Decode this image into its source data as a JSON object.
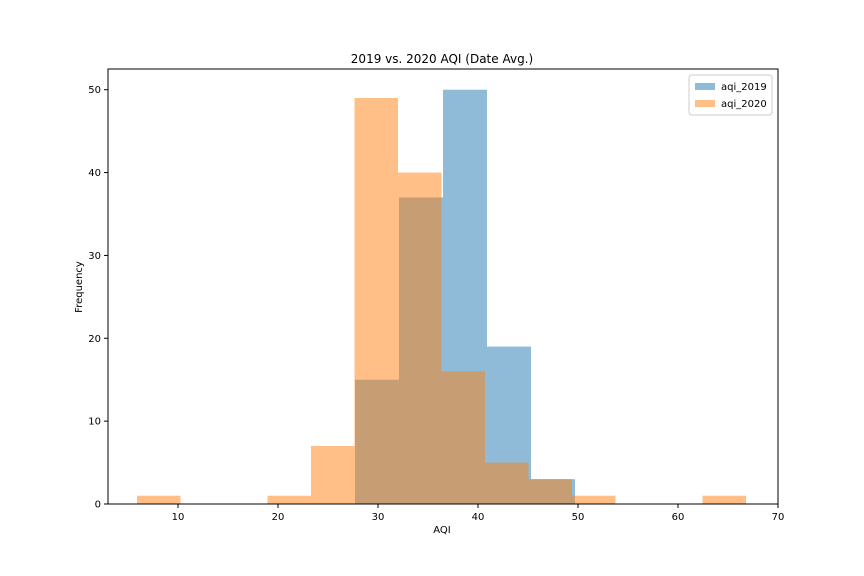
{
  "chart_data": {
    "type": "histogram",
    "title": "2019 vs. 2020 AQI (Date Avg.)",
    "xlabel": "AQI",
    "ylabel": "Frequency",
    "xlim": [
      3,
      70
    ],
    "ylim": [
      0,
      52.5
    ],
    "xticks": [
      10,
      20,
      30,
      40,
      50,
      60,
      70
    ],
    "yticks": [
      0,
      10,
      20,
      30,
      40,
      50
    ],
    "legend_position": "top-right",
    "series": [
      {
        "name": "aqi_2019",
        "color": "#1f77b4",
        "alpha": 0.5,
        "bins": [
          {
            "x0": 27.7,
            "x1": 32.1,
            "count": 15
          },
          {
            "x0": 32.1,
            "x1": 36.5,
            "count": 37
          },
          {
            "x0": 36.5,
            "x1": 40.9,
            "count": 50
          },
          {
            "x0": 40.9,
            "x1": 45.3,
            "count": 19
          },
          {
            "x0": 45.3,
            "x1": 49.7,
            "count": 3
          }
        ]
      },
      {
        "name": "aqi_2020",
        "color": "#ff7f0e",
        "alpha": 0.5,
        "bins": [
          {
            "x0": 5.9,
            "x1": 10.25,
            "count": 1
          },
          {
            "x0": 10.25,
            "x1": 14.6,
            "count": 0
          },
          {
            "x0": 14.6,
            "x1": 18.95,
            "count": 0
          },
          {
            "x0": 18.95,
            "x1": 23.3,
            "count": 1
          },
          {
            "x0": 23.3,
            "x1": 27.65,
            "count": 7
          },
          {
            "x0": 27.65,
            "x1": 32.0,
            "count": 49
          },
          {
            "x0": 32.0,
            "x1": 36.35,
            "count": 40
          },
          {
            "x0": 36.35,
            "x1": 40.7,
            "count": 16
          },
          {
            "x0": 40.7,
            "x1": 45.05,
            "count": 5
          },
          {
            "x0": 45.05,
            "x1": 49.4,
            "count": 3
          },
          {
            "x0": 49.4,
            "x1": 53.75,
            "count": 1
          },
          {
            "x0": 53.75,
            "x1": 58.1,
            "count": 0
          },
          {
            "x0": 58.1,
            "x1": 62.45,
            "count": 0
          },
          {
            "x0": 62.45,
            "x1": 66.8,
            "count": 1
          }
        ]
      }
    ]
  }
}
